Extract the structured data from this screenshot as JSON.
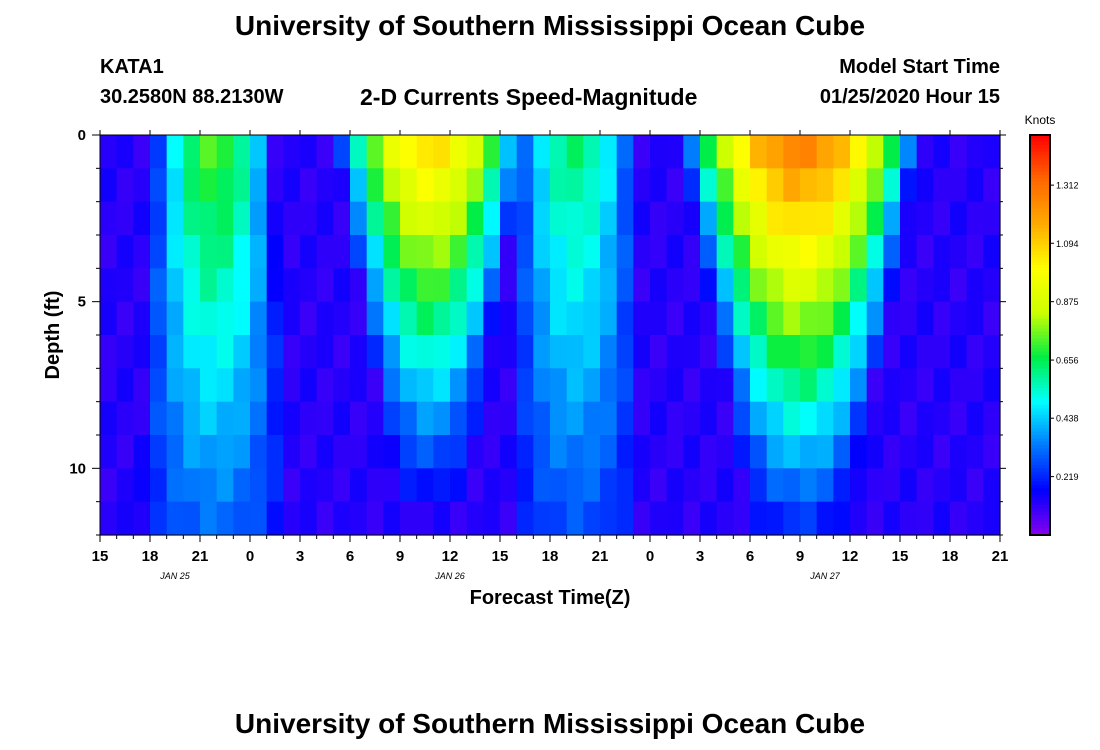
{
  "header": {
    "title": "University of Southern Mississippi Ocean Cube",
    "station_id": "KATA1",
    "coords": "30.2580N 88.2130W",
    "model_start_label": "Model Start Time",
    "model_start_value": "01/25/2020 Hour 15"
  },
  "footer": {
    "title": "University of Southern Mississippi Ocean Cube"
  },
  "chart_data": {
    "type": "heatmap",
    "title": "2-D Currents Speed-Magnitude",
    "xlabel": "Forecast Time(Z)",
    "ylabel": "Depth (ft)",
    "colorbar_label": "Knots",
    "x_ticks": [
      "15",
      "18",
      "21",
      "0",
      "3",
      "6",
      "9",
      "12",
      "15",
      "18",
      "21",
      "0",
      "3",
      "6",
      "9",
      "12",
      "15",
      "18",
      "21"
    ],
    "date_labels": [
      {
        "text": "JAN 25",
        "at_tick": 1.5
      },
      {
        "text": "JAN 26",
        "at_tick": 7.0
      },
      {
        "text": "JAN 27",
        "at_tick": 14.5
      }
    ],
    "x_range_hours": [
      0,
      54
    ],
    "y_ticks": [
      0,
      5,
      10
    ],
    "y_range_ft": [
      0,
      12
    ],
    "colorbar_ticks": [
      0.219,
      0.438,
      0.656,
      0.875,
      1.094,
      1.312
    ],
    "colorbar_range": [
      0,
      1.5
    ],
    "colors": {
      "scale": [
        "#8800ee",
        "#0000ff",
        "#0077ff",
        "#00ffff",
        "#00ee44",
        "#ccff00",
        "#ffff00",
        "#ffaa00",
        "#ff6600",
        "#ff0000"
      ]
    },
    "speed_model": {
      "depth_layers": 12,
      "time_steps": 54,
      "events": [
        {
          "center_hour": 6.8,
          "half_width_surface": 3.5,
          "half_width_bottom": 4.5,
          "peak_surface": 0.72,
          "peak_bottom": 0.32
        },
        {
          "center_hour": 19.8,
          "half_width_surface": 5.5,
          "half_width_bottom": 2.0,
          "peak_surface": 1.05,
          "peak_bottom": 0.12
        },
        {
          "center_hour": 28.5,
          "half_width_surface": 3.5,
          "half_width_bottom": 4.0,
          "peak_surface": 0.62,
          "peak_bottom": 0.28
        },
        {
          "center_hour": 42.0,
          "half_width_surface": 7.0,
          "half_width_bottom": 3.0,
          "peak_surface": 1.25,
          "peak_bottom": 0.24
        }
      ],
      "background_knots": 0.12
    }
  }
}
